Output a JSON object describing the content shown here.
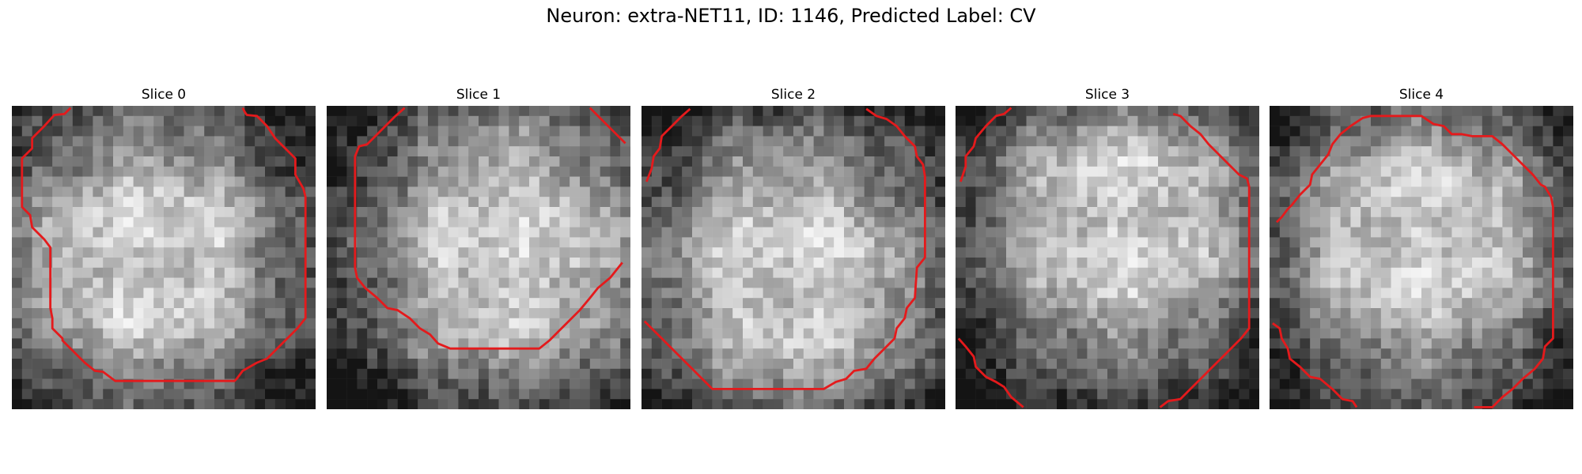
{
  "figure": {
    "title": "Neuron: extra-NET11, ID: 1146, Predicted Label: CV",
    "contour_color": "#e41a1c",
    "colormap": "grayscale",
    "grid_size": 30
  },
  "slices": [
    {
      "title": "Slice 0",
      "seed": 11,
      "bright_center": [
        0.45,
        0.5
      ],
      "contours": [
        [
          [
            5.8,
            0.2
          ],
          [
            5.2,
            0.8
          ],
          [
            4.2,
            0.9
          ],
          [
            3.2,
            2.0
          ],
          [
            2.0,
            3.2
          ],
          [
            2.0,
            4.2
          ],
          [
            1.0,
            5.2
          ],
          [
            1.0,
            10.0
          ],
          [
            1.8,
            10.8
          ],
          [
            2.0,
            12.0
          ],
          [
            3.2,
            13.2
          ],
          [
            3.8,
            14.0
          ],
          [
            3.8,
            20.0
          ],
          [
            4.0,
            21.0
          ],
          [
            4.0,
            22.0
          ],
          [
            5.0,
            23.0
          ],
          [
            5.0,
            23.2
          ],
          [
            6.2,
            24.4
          ],
          [
            7.2,
            25.4
          ],
          [
            8.2,
            26.2
          ],
          [
            9.0,
            26.3
          ],
          [
            10.2,
            27.2
          ],
          [
            22.0,
            27.2
          ],
          [
            22.2,
            27.0
          ],
          [
            22.8,
            26.2
          ],
          [
            24.2,
            25.4
          ],
          [
            25.2,
            25.0
          ],
          [
            26.2,
            24.0
          ],
          [
            27.2,
            23.0
          ],
          [
            28.2,
            22.0
          ],
          [
            29.0,
            21.0
          ],
          [
            29.0,
            9.0
          ],
          [
            28.8,
            8.2
          ],
          [
            28.0,
            6.8
          ],
          [
            28.0,
            5.2
          ],
          [
            26.8,
            4.0
          ],
          [
            26.0,
            3.2
          ],
          [
            25.2,
            2.0
          ],
          [
            24.2,
            1.0
          ],
          [
            23.2,
            0.9
          ],
          [
            23.0,
            0.6
          ],
          [
            22.8,
            0.2
          ]
        ]
      ]
    },
    {
      "title": "Slice 1",
      "seed": 23,
      "bright_center": [
        0.6,
        0.48
      ],
      "contours": [
        [
          [
            7.7,
            0.2
          ],
          [
            6.8,
            1.0
          ],
          [
            6.0,
            1.8
          ],
          [
            5.0,
            2.8
          ],
          [
            4.0,
            3.8
          ],
          [
            3.2,
            4.0
          ],
          [
            2.8,
            5.0
          ],
          [
            2.8,
            16.0
          ],
          [
            3.0,
            17.0
          ],
          [
            3.8,
            18.0
          ],
          [
            5.0,
            19.0
          ],
          [
            6.0,
            20.0
          ],
          [
            7.0,
            20.2
          ],
          [
            8.2,
            21.0
          ],
          [
            9.2,
            22.0
          ],
          [
            10.2,
            22.6
          ],
          [
            11.0,
            23.5
          ],
          [
            12.2,
            24.0
          ],
          [
            21.0,
            24.0
          ],
          [
            22.0,
            23.2
          ],
          [
            23.0,
            22.2
          ],
          [
            24.0,
            21.2
          ],
          [
            25.0,
            20.2
          ],
          [
            26.0,
            19.0
          ],
          [
            26.8,
            18.0
          ],
          [
            28.0,
            17.0
          ],
          [
            29.2,
            15.5
          ]
        ],
        [
          [
            26.0,
            0.2
          ],
          [
            27.3,
            1.5
          ],
          [
            28.5,
            2.7
          ],
          [
            29.5,
            3.7
          ]
        ]
      ]
    },
    {
      "title": "Slice 2",
      "seed": 37,
      "bright_center": [
        0.5,
        0.55
      ],
      "contours": [
        [
          [
            4.8,
            0.3
          ],
          [
            4.0,
            1.0
          ],
          [
            3.0,
            2.0
          ],
          [
            2.0,
            3.0
          ],
          [
            1.8,
            4.2
          ],
          [
            1.2,
            5.0
          ],
          [
            1.0,
            6.2
          ],
          [
            0.5,
            7.5
          ]
        ],
        [
          [
            22.2,
            0.3
          ],
          [
            23.2,
            1.0
          ],
          [
            24.2,
            1.3
          ],
          [
            25.2,
            2.0
          ],
          [
            26.0,
            3.0
          ],
          [
            27.0,
            4.0
          ],
          [
            27.2,
            5.0
          ],
          [
            27.8,
            5.8
          ],
          [
            28.0,
            7.0
          ],
          [
            28.0,
            15.0
          ],
          [
            27.2,
            16.0
          ],
          [
            27.0,
            19.0
          ],
          [
            26.2,
            20.0
          ],
          [
            26.0,
            21.0
          ],
          [
            25.2,
            22.0
          ],
          [
            25.0,
            23.0
          ],
          [
            24.0,
            24.0
          ],
          [
            23.0,
            25.0
          ],
          [
            22.2,
            26.0
          ],
          [
            21.0,
            26.2
          ],
          [
            20.2,
            27.0
          ],
          [
            19.2,
            27.3
          ],
          [
            18.0,
            28.0
          ],
          [
            17.0,
            28.0
          ],
          [
            7.0,
            28.0
          ],
          [
            6.0,
            27.0
          ],
          [
            5.0,
            26.0
          ],
          [
            4.0,
            25.0
          ],
          [
            3.0,
            24.0
          ],
          [
            2.0,
            23.0
          ],
          [
            1.0,
            22.0
          ],
          [
            0.3,
            21.3
          ]
        ]
      ]
    },
    {
      "title": "Slice 3",
      "seed": 53,
      "bright_center": [
        0.55,
        0.4
      ],
      "contours": [
        [
          [
            5.5,
            0.2
          ],
          [
            4.8,
            0.8
          ],
          [
            4.0,
            1.0
          ],
          [
            3.0,
            2.0
          ],
          [
            2.0,
            3.2
          ],
          [
            1.8,
            4.0
          ],
          [
            1.0,
            5.0
          ],
          [
            1.0,
            6.0
          ],
          [
            0.5,
            7.5
          ]
        ],
        [
          [
            21.5,
            0.8
          ],
          [
            22.2,
            1.0
          ],
          [
            23.2,
            2.0
          ],
          [
            24.2,
            2.8
          ],
          [
            25.0,
            3.8
          ],
          [
            26.0,
            4.8
          ],
          [
            27.0,
            5.8
          ],
          [
            28.0,
            6.8
          ],
          [
            28.8,
            7.2
          ],
          [
            29.0,
            8.0
          ],
          [
            29.0,
            22.0
          ],
          [
            28.2,
            23.0
          ],
          [
            27.2,
            24.0
          ],
          [
            26.2,
            25.0
          ],
          [
            25.2,
            26.0
          ],
          [
            24.2,
            27.0
          ],
          [
            23.2,
            28.0
          ],
          [
            22.2,
            29.0
          ],
          [
            21.0,
            29.2
          ],
          [
            20.2,
            29.8
          ]
        ],
        [
          [
            0.3,
            23.0
          ],
          [
            1.0,
            23.8
          ],
          [
            1.8,
            24.8
          ],
          [
            2.0,
            25.8
          ],
          [
            3.0,
            26.8
          ],
          [
            4.0,
            27.3
          ],
          [
            4.8,
            27.8
          ],
          [
            5.5,
            28.8
          ],
          [
            6.7,
            29.8
          ]
        ]
      ]
    },
    {
      "title": "Slice 4",
      "seed": 71,
      "bright_center": [
        0.5,
        0.45
      ],
      "contours": [
        [
          [
            0.7,
            11.5
          ],
          [
            1.2,
            11.0
          ],
          [
            1.8,
            10.2
          ],
          [
            2.2,
            9.8
          ],
          [
            3.0,
            8.8
          ],
          [
            4.0,
            7.8
          ],
          [
            4.2,
            6.8
          ],
          [
            5.0,
            5.8
          ],
          [
            5.8,
            4.8
          ],
          [
            6.2,
            3.8
          ],
          [
            7.0,
            2.8
          ],
          [
            8.0,
            2.0
          ],
          [
            9.2,
            1.2
          ],
          [
            10.0,
            1.0
          ],
          [
            15.0,
            1.0
          ],
          [
            16.2,
            1.8
          ],
          [
            17.2,
            2.0
          ],
          [
            18.0,
            2.8
          ],
          [
            19.0,
            2.8
          ],
          [
            20.0,
            3.0
          ],
          [
            21.0,
            3.0
          ],
          [
            22.0,
            3.0
          ],
          [
            23.0,
            3.8
          ],
          [
            24.0,
            4.8
          ],
          [
            25.0,
            5.8
          ],
          [
            26.0,
            6.8
          ],
          [
            26.8,
            7.8
          ],
          [
            27.2,
            8.0
          ],
          [
            27.8,
            9.0
          ],
          [
            28.0,
            10.0
          ],
          [
            28.0,
            23.0
          ],
          [
            27.2,
            23.8
          ],
          [
            27.0,
            25.0
          ],
          [
            26.2,
            26.0
          ],
          [
            25.0,
            27.0
          ],
          [
            24.0,
            28.0
          ],
          [
            23.0,
            28.8
          ],
          [
            22.0,
            29.8
          ],
          [
            20.2,
            29.8
          ]
        ],
        [
          [
            0.3,
            21.5
          ],
          [
            1.0,
            22.0
          ],
          [
            1.2,
            23.0
          ],
          [
            1.8,
            24.0
          ],
          [
            2.0,
            25.0
          ],
          [
            3.0,
            25.8
          ],
          [
            4.0,
            26.8
          ],
          [
            5.0,
            27.0
          ],
          [
            6.2,
            28.0
          ],
          [
            7.2,
            29.0
          ],
          [
            8.2,
            29.2
          ],
          [
            8.6,
            29.8
          ]
        ]
      ]
    }
  ]
}
